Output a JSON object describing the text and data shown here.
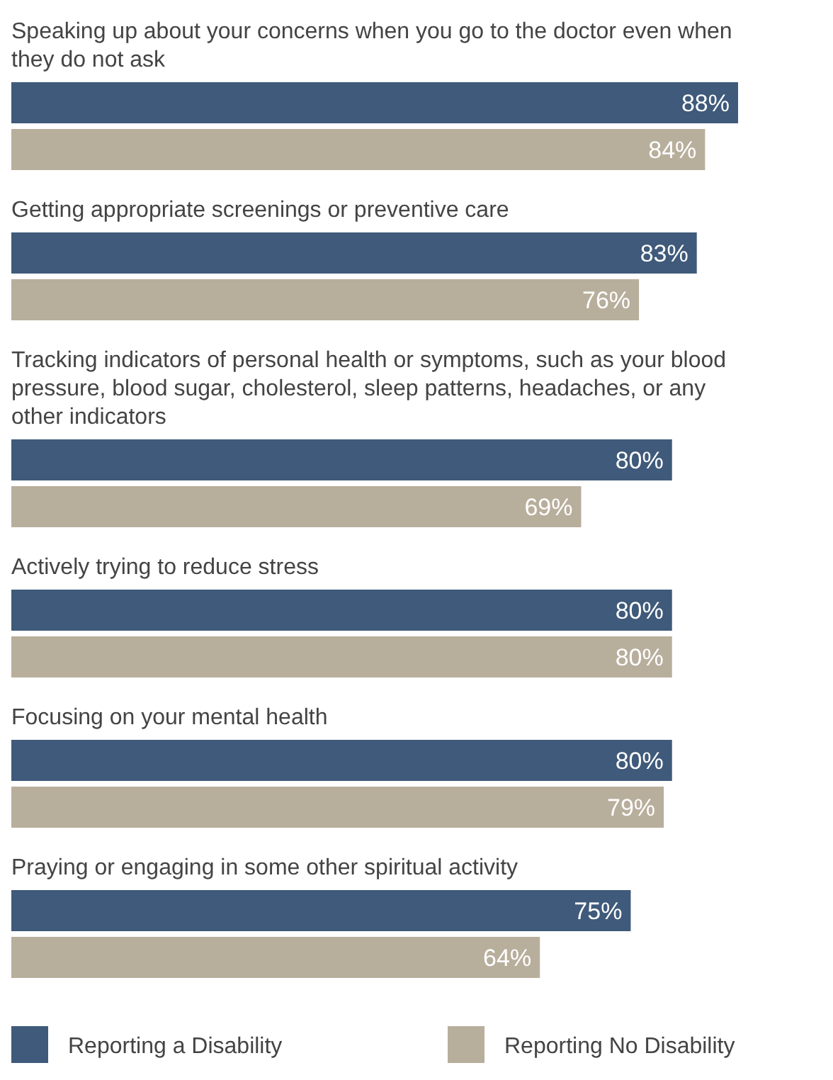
{
  "chart_data": {
    "type": "bar",
    "orientation": "horizontal",
    "tick_labels": false,
    "legend": "bottom",
    "categories": [
      "Speaking up about your concerns when you go to the doctor even when they do not ask",
      "Getting appropriate screenings or preventive care",
      "Tracking indicators of personal health or symptoms, such as your blood pressure, blood sugar, cholesterol, sleep patterns, headaches, or any other indicators",
      "Actively trying to reduce stress",
      "Focusing on your mental health",
      "Praying or engaging in some other spiritual activity"
    ],
    "series": [
      {
        "name": "Reporting a Disability",
        "color": "#3f5a7a",
        "values": [
          88,
          83,
          80,
          80,
          80,
          75
        ],
        "value_labels": [
          "88%",
          "83%",
          "80%",
          "80%",
          "80%",
          "75%"
        ]
      },
      {
        "name": "Reporting No Disability",
        "color": "#b8ae9c",
        "values": [
          84,
          76,
          69,
          80,
          79,
          64
        ],
        "value_labels": [
          "84%",
          "76%",
          "69%",
          "80%",
          "79%",
          "64%"
        ]
      }
    ]
  }
}
